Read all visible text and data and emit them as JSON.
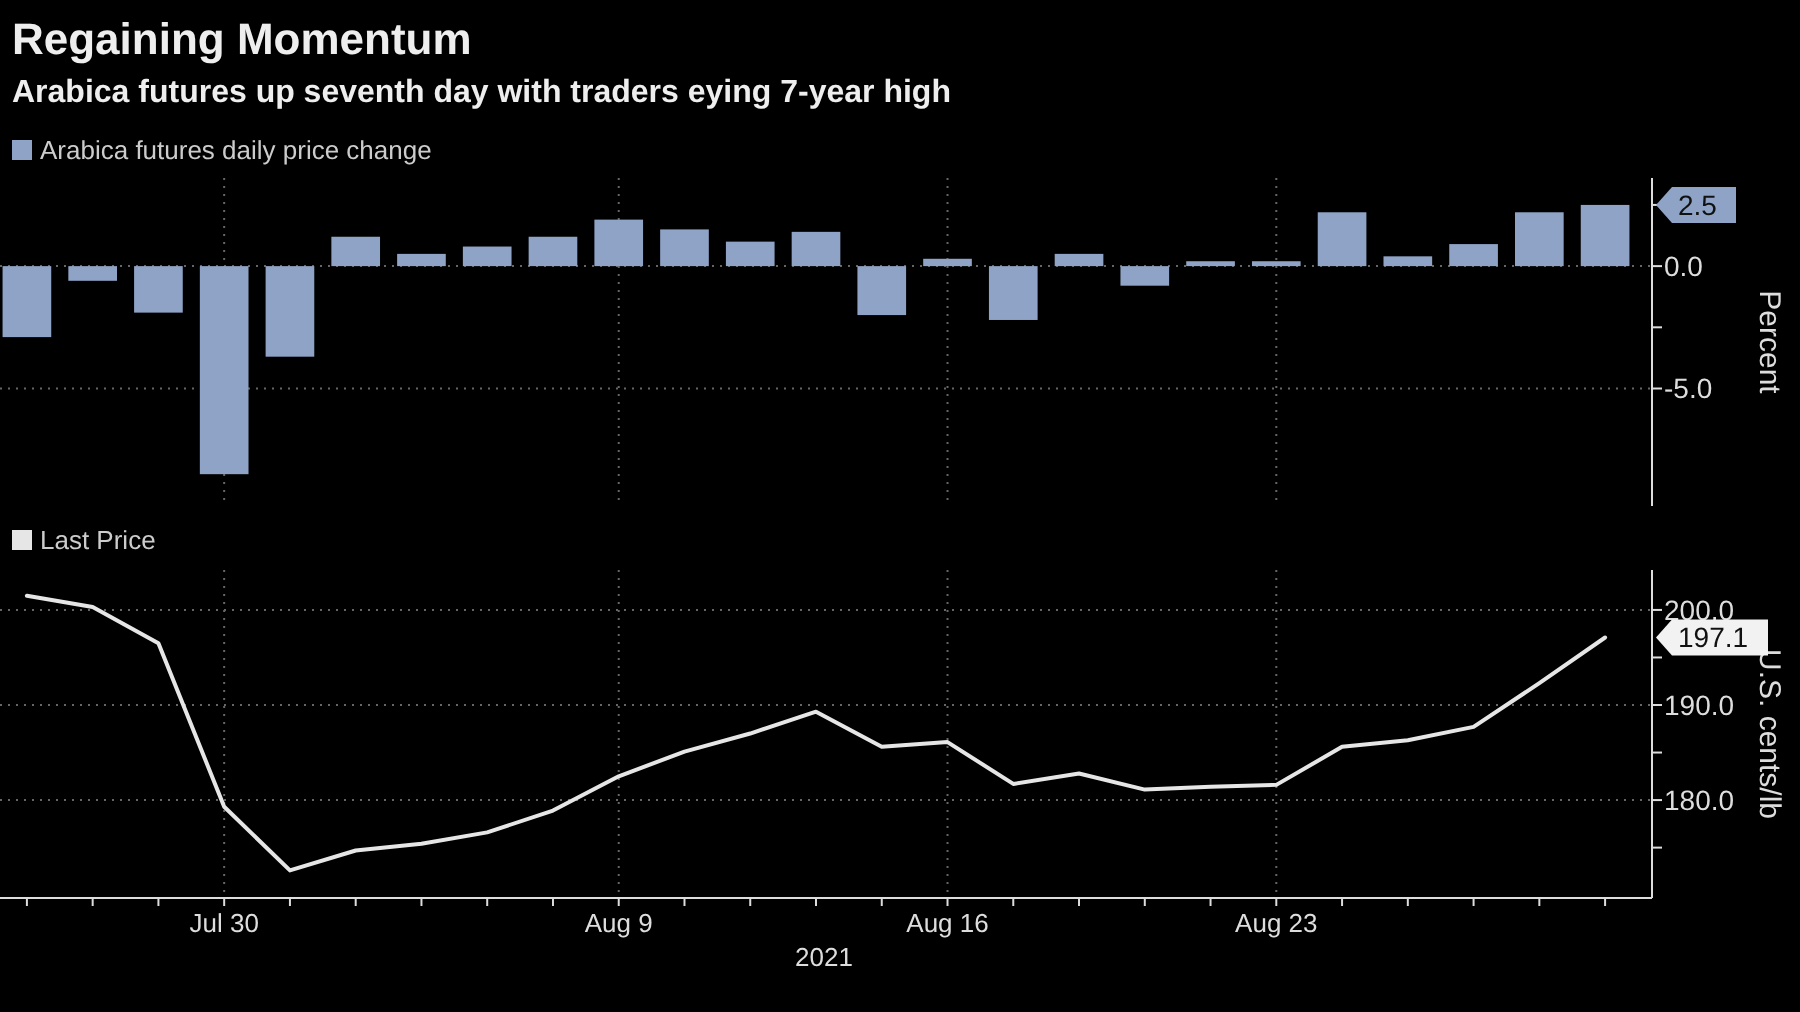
{
  "chart_data": [
    {
      "type": "bar",
      "title": "Regaining Momentum",
      "subtitle": "Arabica futures up seventh day with traders eying 7-year high",
      "ylabel": "Percent",
      "categories": [
        null,
        null,
        null,
        null,
        null,
        null,
        null,
        null,
        null,
        null,
        null,
        null,
        null,
        null,
        null,
        null,
        null,
        null,
        null,
        null,
        null,
        null,
        null,
        null,
        null
      ],
      "series": [
        {
          "name": "Arabica futures daily price change",
          "color": "#8ea3c5",
          "values": [
            -2.9,
            -0.6,
            -1.9,
            -8.5,
            -3.7,
            1.2,
            0.5,
            0.8,
            1.2,
            1.9,
            1.5,
            1.0,
            1.4,
            -2.0,
            0.3,
            -2.2,
            0.5,
            -0.8,
            0.2,
            0.2,
            2.2,
            0.4,
            0.9,
            2.2,
            2.5
          ]
        }
      ],
      "ylim": [
        -9.8,
        3.6
      ],
      "yticks": [
        {
          "value": -5,
          "label": "-5.0"
        },
        {
          "value": -2.5,
          "label": null
        },
        {
          "value": 0,
          "label": "0.0"
        },
        {
          "value": 2.5,
          "label": null
        }
      ],
      "annotations": [
        "2.5"
      ],
      "grid": true,
      "legend": "top left",
      "tick_labels": "y"
    },
    {
      "type": "line",
      "ylabel": "U.S. cents/lb",
      "xlabel": "2021",
      "categories": [
        null,
        null,
        null,
        "Jul 30",
        null,
        null,
        null,
        null,
        null,
        "Aug 9",
        null,
        null,
        null,
        null,
        "Aug 16",
        null,
        null,
        null,
        null,
        "Aug 23",
        null,
        null,
        null,
        null,
        null
      ],
      "series": [
        {
          "name": "Last Price",
          "color": "#e6e6e6",
          "values": [
            201.5,
            200.3,
            196.5,
            179.3,
            172.6,
            174.7,
            175.4,
            176.6,
            178.9,
            182.5,
            185.1,
            187.0,
            189.3,
            185.6,
            186.1,
            181.7,
            182.8,
            181.1,
            181.4,
            181.6,
            185.6,
            186.3,
            187.7,
            192.3,
            197.1
          ]
        }
      ],
      "ylim": [
        169.7,
        204.2
      ],
      "yticks": [
        {
          "value": 175,
          "label": null
        },
        {
          "value": 180,
          "label": "180.0"
        },
        {
          "value": 185,
          "label": null
        },
        {
          "value": 190,
          "label": "190.0"
        },
        {
          "value": 195,
          "label": null
        },
        {
          "value": 200,
          "label": "200.0"
        }
      ],
      "annotations": [
        "197.1"
      ],
      "grid": true,
      "legend": "top left",
      "marker": "none",
      "line_style": "solid"
    }
  ]
}
